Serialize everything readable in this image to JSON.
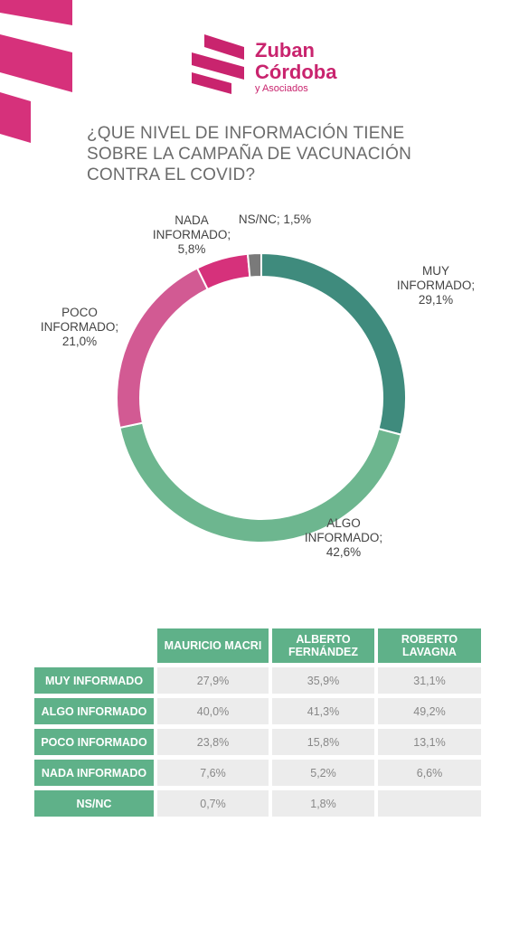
{
  "logo": {
    "line1": "Zuban",
    "line2": "Córdoba",
    "line3": "y Asociados"
  },
  "chart_data": {
    "type": "donut",
    "title": "¿QUE NIVEL DE INFORMACIÓN TIENE SOBRE LA CAMPAÑA DE VACUNACIÓN CONTRA EL COVID?",
    "categories": [
      "MUY INFORMADO;",
      "ALGO INFORMADO;",
      "POCO INFORMADO;",
      "NADA INFORMADO;",
      "NS/NC;"
    ],
    "values": [
      29.1,
      42.6,
      21.0,
      5.8,
      1.5
    ],
    "value_labels": [
      "29,1%",
      "42,6%",
      "21,0%",
      "5,8%",
      "1,5%"
    ],
    "colors": [
      "#3f8b7d",
      "#6db68f",
      "#d25a93",
      "#d6317b",
      "#7a7a7a"
    ]
  },
  "table": {
    "columns": [
      "MAURICIO MACRI",
      "ALBERTO FERNÁNDEZ",
      "ROBERTO LAVAGNA"
    ],
    "rows": [
      [
        "MUY INFORMADO",
        "27,9%",
        "35,9%",
        "31,1%"
      ],
      [
        "ALGO INFORMADO",
        "40,0%",
        "41,3%",
        "49,2%"
      ],
      [
        "POCO INFORMADO",
        "23,8%",
        "15,8%",
        "13,1%"
      ],
      [
        "NADA INFORMADO",
        "7,6%",
        "5,2%",
        "6,6%"
      ],
      [
        "NS/NC",
        "0,7%",
        "1,8%",
        null
      ]
    ]
  }
}
